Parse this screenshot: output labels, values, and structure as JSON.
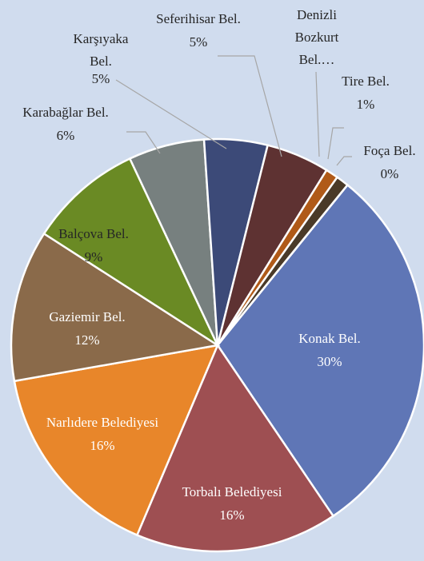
{
  "chart_data": {
    "type": "pie",
    "categories": [
      "Konak Bel.",
      "Torbalı Belediyesi",
      "Narlıdere Belediyesi",
      "Gaziemir Bel.",
      "Balçova Bel.",
      "Karabağlar Bel.",
      "Karşıyaka Bel.",
      "Seferihisar Bel.",
      "Denizli Bozkurt Bel.…",
      "Tire Bel.",
      "Foça Bel."
    ],
    "values": [
      30,
      16,
      16,
      12,
      9,
      6,
      5,
      5,
      1,
      1,
      0
    ],
    "value_labels": [
      "30%",
      "16%",
      "16%",
      "12%",
      "9%",
      "6%",
      "5%",
      "5%",
      null,
      "1%",
      "0%"
    ],
    "colors": [
      "#5f76b6",
      "#9e4f52",
      "#e8862a",
      "#8a6a4a",
      "#6a8a24",
      "#77807f",
      "#3c4a78",
      "#5e3232",
      "#b05a18",
      "#4a3a28",
      "#4e6a20"
    ]
  }
}
